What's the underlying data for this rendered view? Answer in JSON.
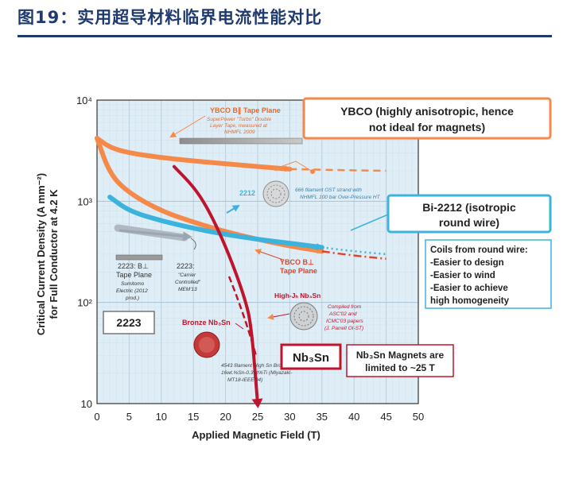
{
  "figure_title": "图19：实用超导材料临界电流性能对比",
  "chart_data": {
    "type": "line",
    "xlabel": "Applied Magnetic Field (T)",
    "ylabel_line1": "Critical Current Density (A mm⁻²)",
    "ylabel_line2": "for Full Conductor at 4.2 K",
    "x_ticks": [
      "0",
      "5",
      "10",
      "15",
      "20",
      "25",
      "30",
      "35",
      "40",
      "45",
      "50"
    ],
    "y_ticks": [
      "10⁴",
      "10³",
      "10²",
      "10"
    ],
    "xlim": [
      0,
      50
    ],
    "ylim": [
      10,
      10000
    ],
    "y_scale": "log",
    "series": [
      {
        "name": "YBCO B∥ Tape Plane",
        "color": "#f4894a",
        "x": [
          0,
          2,
          5,
          10,
          15,
          20,
          25,
          30
        ],
        "y": [
          4200,
          3400,
          3000,
          2700,
          2500,
          2350,
          2200,
          2080
        ],
        "x_ext": [
          30,
          40,
          45
        ],
        "y_ext": [
          2080,
          2020,
          2000
        ]
      },
      {
        "name": "YBCO B⊥ Tape Plane",
        "color": "#f4894a",
        "x": [
          0,
          2,
          5,
          10,
          15,
          20,
          25,
          30,
          35
        ],
        "y": [
          4200,
          1850,
          1200,
          800,
          620,
          500,
          420,
          360,
          320
        ],
        "x_ext": [
          35,
          40,
          45
        ],
        "y_ext": [
          320,
          290,
          270
        ]
      },
      {
        "name": "2212",
        "color": "#3bb3dc",
        "x": [
          2,
          5,
          10,
          15,
          20,
          25,
          30,
          35
        ],
        "y": [
          1100,
          800,
          640,
          540,
          470,
          420,
          385,
          350
        ],
        "x_ext": [
          35,
          40,
          45
        ],
        "y_ext": [
          350,
          320,
          300
        ]
      },
      {
        "name": "Nb₃Sn",
        "color": "#c0142c",
        "x": [
          12,
          15,
          17,
          19,
          21,
          23,
          24,
          25
        ],
        "y": [
          2200,
          1400,
          900,
          500,
          250,
          110,
          60,
          10
        ]
      }
    ],
    "annotations": {
      "ybco_par_label": "YBCO B∥ Tape Plane",
      "ybco_par_note_1": "SuperPower \"Turbo\" Double",
      "ybco_par_note_2": "Layer Tape, measured at",
      "ybco_par_note_3": "NHMFL 2009",
      "ybco_perp_label_1": "YBCO B⊥",
      "ybco_perp_label_2": "Tape Plane",
      "b2212_label": "2212",
      "b2212_note_1": "666 filament OST strand with",
      "b2212_note_2": "NHMFL 100 bar Over-Pressure HT",
      "bi2223_par_label_1": "2223: B⊥",
      "bi2223_par_label_2": "Tape Plane",
      "bi2223_par_note_1": "Sumitomo",
      "bi2223_par_note_2": "Electric (2012",
      "bi2223_par_note_3": "prod.)",
      "bi2223_cc_label": "2223:",
      "bi2223_cc_note_1": "\"Carrier",
      "bi2223_cc_note_2": "Controlled\"",
      "bi2223_cc_note_3": "MEM'13",
      "highj_label": "High-Jₕ Nb₃Sn",
      "highj_note_1": "Compiled from",
      "highj_note_2": "ASC'02 and",
      "highj_note_3": "ICMC'03 papers",
      "highj_note_4": "(J. Parrell OI-ST)",
      "bronze_label": "Bronze Nb₃Sn",
      "bronze_note_1": "4543 filament High Sn Bronze-",
      "bronze_note_2": "16wt.%Sn-0.3wt%Ti (Miyazaki-",
      "bronze_note_3": "MT18-IEEE'04)"
    },
    "callouts": {
      "ybco_1": "YBCO (highly anisotropic, hence",
      "ybco_2": "not ideal for magnets)",
      "bi2212_1": "Bi-2212 (isotropic",
      "bi2212_2": "round wire)",
      "coils_1": "Coils from round wire:",
      "coils_2": "-Easier to design",
      "coils_3": "-Easier to wind",
      "coils_4": "-Easier to achieve",
      "coils_5": "high homogeneity",
      "b2223": "2223",
      "nb3sn": "Nb₃Sn",
      "nb3sn_limit_1": "Nb₃Sn Magnets are",
      "nb3sn_limit_2": "limited to ~25 T"
    }
  }
}
